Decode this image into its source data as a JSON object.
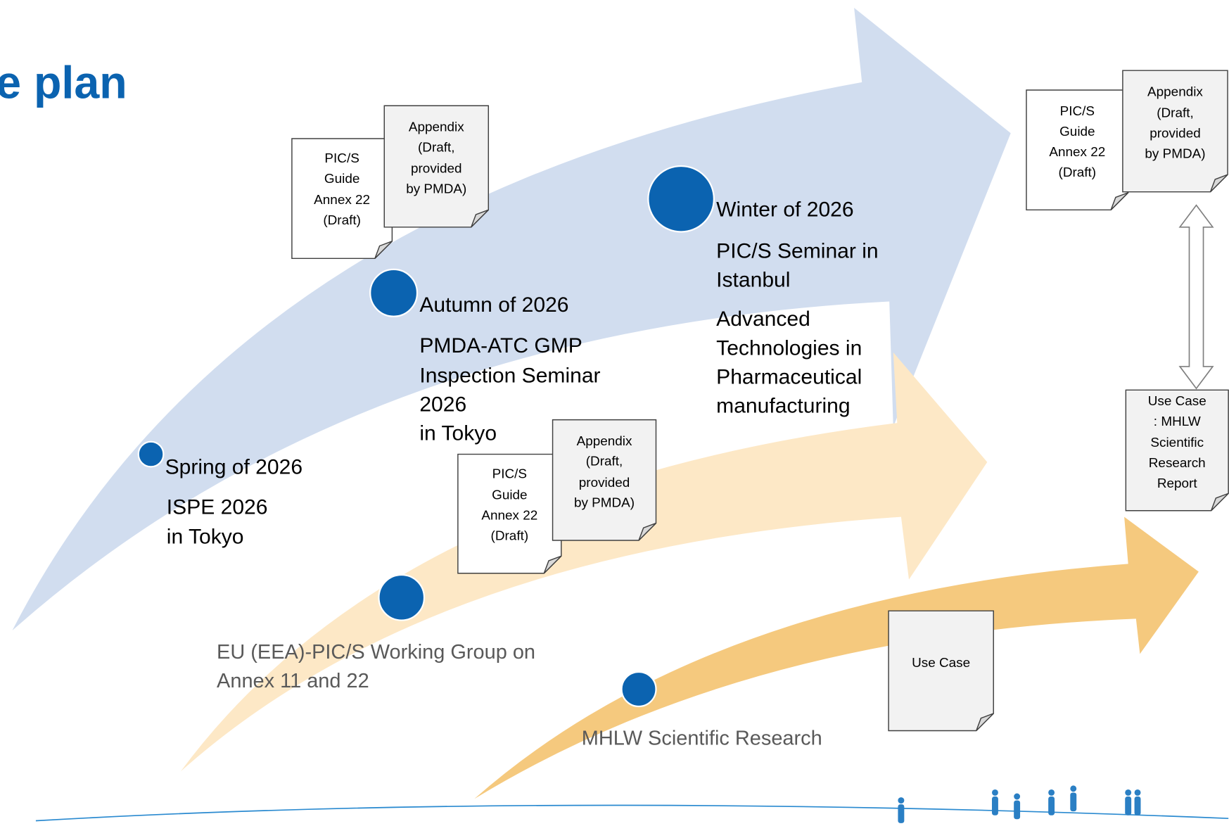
{
  "title": "e plan",
  "milestones": [
    {
      "date": "Spring of 2026",
      "lines": [
        "ISPE 2026",
        "in Tokyo"
      ]
    },
    {
      "date": "Autumn of 2026",
      "lines": [
        "PMDA-ATC GMP",
        "Inspection Seminar",
        "2026",
        "in Tokyo"
      ]
    },
    {
      "date": "Winter of 2026",
      "lines": [
        "PIC/S Seminar in",
        "Istanbul"
      ],
      "lines2": [
        "Advanced",
        "Technologies in",
        "Pharmaceutical",
        "manufacturing"
      ]
    }
  ],
  "tracks": [
    {
      "lines": [
        "EU (EEA)-PIC/S Working Group on",
        "Annex 11 and 22"
      ]
    },
    {
      "lines": [
        "MHLW Scientific Research"
      ]
    }
  ],
  "documents": [
    {
      "lines": [
        "PIC/S",
        "Guide",
        "Annex 22",
        "(Draft)"
      ]
    },
    {
      "lines": [
        "Appendix",
        "(Draft,",
        "provided",
        "by PMDA)"
      ]
    },
    {
      "lines": [
        "PIC/S",
        "Guide",
        "Annex 22",
        "(Draft)"
      ]
    },
    {
      "lines": [
        "Appendix",
        "(Draft,",
        "provided",
        "by PMDA)"
      ]
    },
    {
      "lines": [
        "PIC/S",
        "Guide",
        "Annex 22",
        "(Draft)"
      ]
    },
    {
      "lines": [
        "Appendix",
        "(Draft,",
        "provided",
        "by PMDA)"
      ]
    },
    {
      "lines": [
        "Use Case",
        ": MHLW",
        "Scientific",
        "Research",
        "Report"
      ]
    },
    {
      "lines": [
        "Use Case"
      ]
    }
  ]
}
